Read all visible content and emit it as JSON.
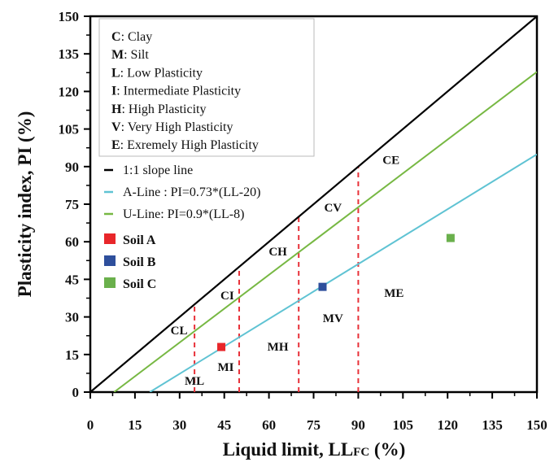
{
  "chart_data": {
    "type": "scatter",
    "xlabel": "Liquid limit, LL",
    "xlabel_sub": "FC",
    "xlabel_suffix": " (%)",
    "ylabel": "Plasticity index, PI (%)",
    "xlim": [
      0,
      150
    ],
    "ylim": [
      0,
      150
    ],
    "xticks": [
      0,
      15,
      30,
      45,
      60,
      75,
      90,
      105,
      120,
      135,
      150
    ],
    "yticks": [
      0,
      15,
      30,
      45,
      60,
      75,
      90,
      105,
      120,
      135,
      150
    ],
    "grid": false,
    "notes_box": [
      {
        "key": "C",
        "text": ": Clay"
      },
      {
        "key": "M",
        "text": ": Silt"
      },
      {
        "key": "L",
        "text": ": Low Plasticity"
      },
      {
        "key": "I",
        "text": ": Intermediate Plasticity"
      },
      {
        "key": "H",
        "text": ": High Plasticity"
      },
      {
        "key": "V",
        "text": ": Very High Plasticity"
      },
      {
        "key": "E",
        "text": ": Exremely High Plasticity"
      }
    ],
    "lines": [
      {
        "name": "1:1 slope line",
        "slope": 1,
        "x_intercept": 0,
        "color": "#000000"
      },
      {
        "name": "A-Line : PI=0.73*(LL-20)",
        "slope": 0.73,
        "x_intercept": 20,
        "color": "#5fc3d3"
      },
      {
        "name": "U-Line: PI=0.9*(LL-8)",
        "slope": 0.9,
        "x_intercept": 8,
        "color": "#77b843"
      }
    ],
    "boundaries": {
      "x": [
        35,
        50,
        70,
        90
      ],
      "color": "#e8323a",
      "style": "dashed"
    },
    "series": [
      {
        "name": "Soil A",
        "x": [
          44
        ],
        "y": [
          18
        ],
        "color": "#e8262a"
      },
      {
        "name": "Soil B",
        "x": [
          78
        ],
        "y": [
          42
        ],
        "color": "#2e4f9c"
      },
      {
        "name": "Soil C",
        "x": [
          121
        ],
        "y": [
          61.5
        ],
        "color": "#6ab04c"
      }
    ],
    "zone_labels": [
      "CL",
      "CI",
      "CH",
      "CV",
      "CE",
      "ML",
      "MI",
      "MH",
      "MV",
      "ME"
    ],
    "legend_placement": "top-left"
  }
}
